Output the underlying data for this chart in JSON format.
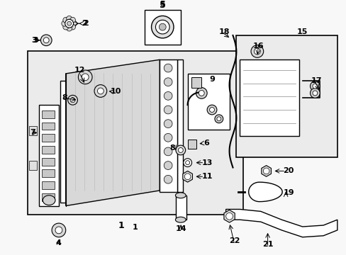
{
  "bg_color": "#f2f2f2",
  "white": "#ffffff",
  "black": "#000000",
  "light_gray": "#e0e0e0",
  "mid_gray": "#c0c0c0"
}
